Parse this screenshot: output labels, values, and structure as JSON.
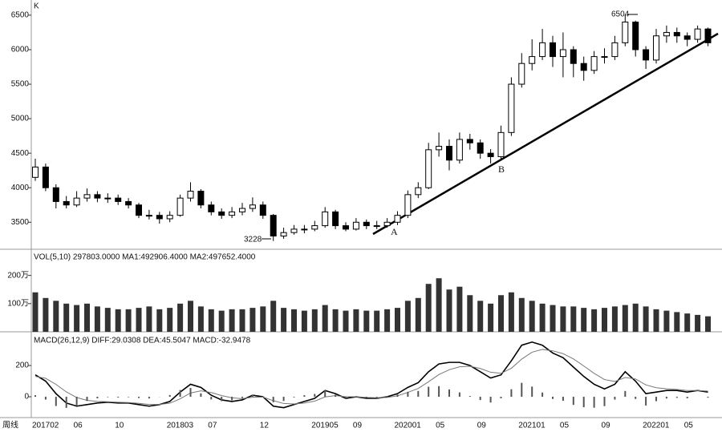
{
  "chart_data": [
    {
      "type": "candlestick",
      "title": "K",
      "period": "周线",
      "categories": [
        "201702",
        null,
        null,
        null,
        "06",
        null,
        null,
        null,
        "10",
        null,
        null,
        null,
        null,
        "201803",
        null,
        null,
        null,
        "07",
        null,
        null,
        null,
        null,
        "12",
        null,
        null,
        null,
        null,
        "201905",
        null,
        null,
        null,
        "09",
        null,
        null,
        null,
        "202001",
        null,
        null,
        null,
        "05",
        null,
        null,
        null,
        "09",
        null,
        null,
        null,
        "202101",
        null,
        null,
        null,
        "05",
        null,
        null,
        null,
        "09",
        null,
        null,
        null,
        "202201",
        null,
        null,
        null,
        "05",
        null,
        null
      ],
      "open": [
        4150,
        4300,
        4000,
        3800,
        3750,
        3850,
        3900,
        3850,
        3850,
        3800,
        3750,
        3600,
        3600,
        3550,
        3600,
        3850,
        3950,
        3750,
        3650,
        3600,
        3650,
        3700,
        3750,
        3600,
        3300,
        3350,
        3400,
        3400,
        3450,
        3650,
        3450,
        3400,
        3500,
        3450,
        3450,
        3500,
        3600,
        3900,
        4000,
        4550,
        4600,
        4400,
        4700,
        4650,
        4500,
        4450,
        4800,
        5500,
        5800,
        5900,
        6100,
        5900,
        6000,
        5800,
        5700,
        5900,
        5900,
        6100,
        6400,
        6000,
        5850,
        6200,
        6250,
        6200,
        6150,
        6300
      ],
      "high": [
        4420,
        4350,
        4050,
        3880,
        3950,
        3990,
        3950,
        3920,
        3900,
        3850,
        3780,
        3680,
        3650,
        3660,
        3900,
        4080,
        3980,
        3800,
        3700,
        3720,
        3780,
        3860,
        3800,
        3620,
        3420,
        3460,
        3460,
        3520,
        3720,
        3680,
        3500,
        3560,
        3540,
        3520,
        3560,
        3660,
        3960,
        4080,
        4650,
        4800,
        4700,
        4800,
        4780,
        4700,
        4560,
        4900,
        5600,
        5950,
        6150,
        6300,
        6200,
        6250,
        6050,
        5900,
        5980,
        6020,
        6200,
        6504,
        6420,
        6050,
        6300,
        6350,
        6320,
        6250,
        6350,
        6320
      ],
      "low": [
        4100,
        3950,
        3700,
        3700,
        3720,
        3800,
        3790,
        3780,
        3750,
        3700,
        3560,
        3540,
        3480,
        3500,
        3580,
        3800,
        3700,
        3600,
        3550,
        3560,
        3600,
        3650,
        3550,
        3228,
        3260,
        3320,
        3340,
        3370,
        3420,
        3400,
        3370,
        3380,
        3400,
        3400,
        3420,
        3460,
        3560,
        3850,
        3980,
        4450,
        4250,
        4350,
        4550,
        4420,
        4350,
        4400,
        4750,
        5450,
        5700,
        5850,
        5750,
        5600,
        5600,
        5550,
        5650,
        5800,
        5850,
        6050,
        5900,
        5720,
        5800,
        6100,
        6100,
        6050,
        6100,
        6050
      ],
      "close": [
        4300,
        4000,
        3800,
        3750,
        3850,
        3900,
        3850,
        3850,
        3800,
        3750,
        3600,
        3600,
        3550,
        3600,
        3850,
        3950,
        3750,
        3650,
        3600,
        3650,
        3700,
        3750,
        3600,
        3300,
        3350,
        3400,
        3400,
        3450,
        3650,
        3450,
        3400,
        3500,
        3450,
        3450,
        3500,
        3600,
        3900,
        4000,
        4550,
        4600,
        4400,
        4700,
        4650,
        4500,
        4450,
        4800,
        5500,
        5800,
        5900,
        6100,
        5900,
        6000,
        5800,
        5700,
        5900,
        5900,
        6100,
        6400,
        6000,
        5850,
        6200,
        6250,
        6200,
        6150,
        6300,
        6100
      ],
      "ylim": [
        3120,
        6650
      ],
      "yticks": [
        3500,
        4000,
        4500,
        5000,
        5500,
        6000,
        6500
      ],
      "annotations": [
        "A",
        "B",
        "6504",
        "3228"
      ],
      "color": "#000000"
    },
    {
      "type": "bar",
      "title": "VOL(5,10) 297803.0000 MA1:492906.4000 MA2:497652.4000",
      "values": [
        140,
        120,
        110,
        100,
        95,
        100,
        90,
        85,
        80,
        80,
        85,
        90,
        80,
        85,
        100,
        110,
        90,
        80,
        75,
        80,
        80,
        85,
        90,
        110,
        85,
        80,
        75,
        80,
        95,
        80,
        75,
        80,
        75,
        75,
        80,
        85,
        110,
        120,
        170,
        190,
        150,
        160,
        130,
        110,
        100,
        130,
        140,
        120,
        110,
        100,
        95,
        90,
        90,
        85,
        80,
        85,
        90,
        95,
        100,
        90,
        80,
        75,
        70,
        65,
        60,
        55
      ],
      "ylim": [
        0,
        290
      ],
      "yticks": [
        {
          "value": 100,
          "label": "100万"
        },
        {
          "value": 200,
          "label": "200万"
        }
      ],
      "color": "#333333"
    },
    {
      "type": "macd",
      "title": "MACD(26,12,9) DIFF:29.0308 DEA:45.5047 MACD:-32.9478",
      "series": [
        {
          "name": "DIFF",
          "color": "#000000",
          "values": [
            140,
            100,
            20,
            -40,
            -60,
            -50,
            -40,
            -35,
            -40,
            -40,
            -50,
            -60,
            -50,
            -30,
            30,
            80,
            60,
            10,
            -20,
            -30,
            -20,
            10,
            0,
            -60,
            -70,
            -50,
            -30,
            -10,
            40,
            20,
            -10,
            0,
            -10,
            -10,
            0,
            20,
            60,
            90,
            160,
            210,
            220,
            220,
            200,
            160,
            120,
            140,
            230,
            330,
            350,
            330,
            280,
            250,
            190,
            130,
            80,
            50,
            80,
            160,
            100,
            20,
            30,
            40,
            40,
            30,
            40,
            30
          ]
        },
        {
          "name": "DEA",
          "color": "#777777",
          "values": [
            130,
            118,
            79,
            31,
            -5,
            -23,
            -30,
            -32,
            -35,
            -37,
            -42,
            -49,
            -49,
            -41,
            -13,
            24,
            38,
            27,
            8,
            -7,
            -12,
            -3,
            -2,
            -25,
            -43,
            -46,
            -40,
            -28,
            -1,
            7,
            0,
            0,
            -4,
            -6,
            -4,
            6,
            28,
            53,
            96,
            142,
            173,
            192,
            195,
            181,
            157,
            150,
            182,
            241,
            285,
            303,
            294,
            276,
            242,
            197,
            150,
            110,
            98,
            123,
            114,
            76,
            58,
            51,
            47,
            40,
            40,
            36
          ]
        },
        {
          "name": "MACD",
          "color": "#555555",
          "values": [
            10,
            -18,
            -59,
            -71,
            -55,
            -27,
            -10,
            -3,
            -5,
            -3,
            -8,
            -11,
            -1,
            11,
            43,
            56,
            22,
            -17,
            -28,
            -23,
            -8,
            13,
            2,
            -35,
            -27,
            -4,
            10,
            18,
            41,
            13,
            -10,
            0,
            -6,
            -4,
            4,
            14,
            32,
            37,
            64,
            68,
            47,
            28,
            5,
            -21,
            -37,
            -10,
            48,
            89,
            65,
            27,
            -14,
            -26,
            -52,
            -67,
            -70,
            -60,
            -18,
            37,
            -14,
            -56,
            -28,
            -11,
            -7,
            -10,
            0,
            -6
          ]
        }
      ],
      "ylim": [
        -128,
        395
      ],
      "yticks": [
        0,
        200
      ]
    }
  ]
}
